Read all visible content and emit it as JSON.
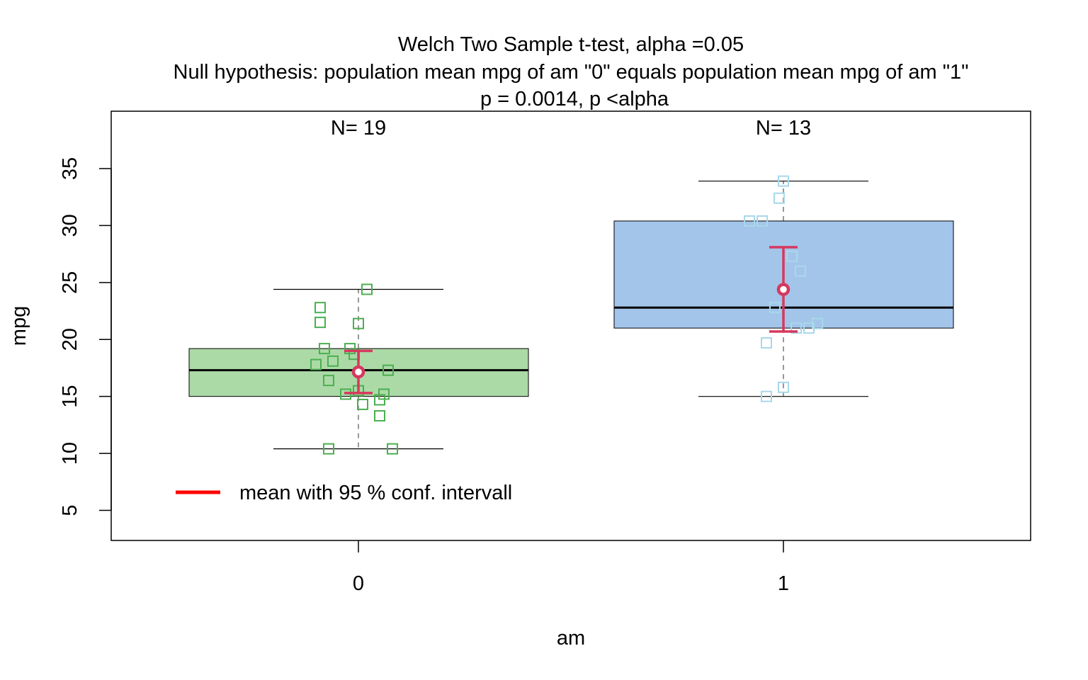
{
  "chart_data": {
    "type": "boxplot",
    "title_lines": [
      "Welch Two Sample t-test, alpha =0.05",
      "Null hypothesis: population mean mpg of am \"0\" equals population mean mpg of am \"1\"",
      "p = 0.0014, p <alpha"
    ],
    "xlabel": "am",
    "ylabel": "mpg",
    "ylim": [
      2.5,
      40
    ],
    "y_ticks": [
      5,
      10,
      15,
      20,
      25,
      30,
      35
    ],
    "categories": [
      "0",
      "1"
    ],
    "groups": [
      {
        "category": "0",
        "n_label": "N= 19",
        "box_color": "#abdaa7",
        "point_color": "#4caf50",
        "stats": {
          "whisker_low": 10.4,
          "q1": 15.0,
          "median": 17.3,
          "q3": 19.2,
          "whisker_high": 24.4
        },
        "mean": 17.15,
        "ci": [
          15.3,
          19.0
        ],
        "points": [
          {
            "jitter": -0.09,
            "y": 22.8
          },
          {
            "jitter": -0.09,
            "y": 21.5
          },
          {
            "jitter": 0.02,
            "y": 24.4
          },
          {
            "jitter": 0.0,
            "y": 21.4
          },
          {
            "jitter": -0.08,
            "y": 19.2
          },
          {
            "jitter": -0.02,
            "y": 19.2
          },
          {
            "jitter": -0.01,
            "y": 18.7
          },
          {
            "jitter": -0.06,
            "y": 18.1
          },
          {
            "jitter": -0.1,
            "y": 17.8
          },
          {
            "jitter": 0.07,
            "y": 17.3
          },
          {
            "jitter": -0.07,
            "y": 16.4
          },
          {
            "jitter": -0.03,
            "y": 15.2
          },
          {
            "jitter": 0.06,
            "y": 15.2
          },
          {
            "jitter": 0.0,
            "y": 15.5
          },
          {
            "jitter": 0.05,
            "y": 14.7
          },
          {
            "jitter": 0.01,
            "y": 14.3
          },
          {
            "jitter": 0.05,
            "y": 13.3
          },
          {
            "jitter": -0.07,
            "y": 10.4
          },
          {
            "jitter": 0.08,
            "y": 10.4
          }
        ]
      },
      {
        "category": "1",
        "n_label": "N= 13",
        "box_color": "#a4c5ea",
        "point_color": "#a8d8ea",
        "stats": {
          "whisker_low": 15.0,
          "q1": 21.0,
          "median": 22.8,
          "q3": 30.4,
          "whisker_high": 33.9
        },
        "mean": 24.39,
        "ci": [
          20.7,
          28.1
        ],
        "points": [
          {
            "jitter": 0.0,
            "y": 33.9
          },
          {
            "jitter": -0.01,
            "y": 32.4
          },
          {
            "jitter": -0.08,
            "y": 30.4
          },
          {
            "jitter": -0.05,
            "y": 30.4
          },
          {
            "jitter": 0.02,
            "y": 27.3
          },
          {
            "jitter": 0.04,
            "y": 26.0
          },
          {
            "jitter": -0.02,
            "y": 22.8
          },
          {
            "jitter": 0.08,
            "y": 21.4
          },
          {
            "jitter": 0.03,
            "y": 21.0
          },
          {
            "jitter": 0.06,
            "y": 21.0
          },
          {
            "jitter": -0.04,
            "y": 19.7
          },
          {
            "jitter": 0.0,
            "y": 15.8
          },
          {
            "jitter": -0.04,
            "y": 15.0
          }
        ]
      }
    ],
    "mean_ci_color": "#d6385e",
    "legend": {
      "label": "mean with 95 % conf. intervall",
      "color": "#ff0000",
      "position": "bottom-left"
    },
    "grid": false
  }
}
